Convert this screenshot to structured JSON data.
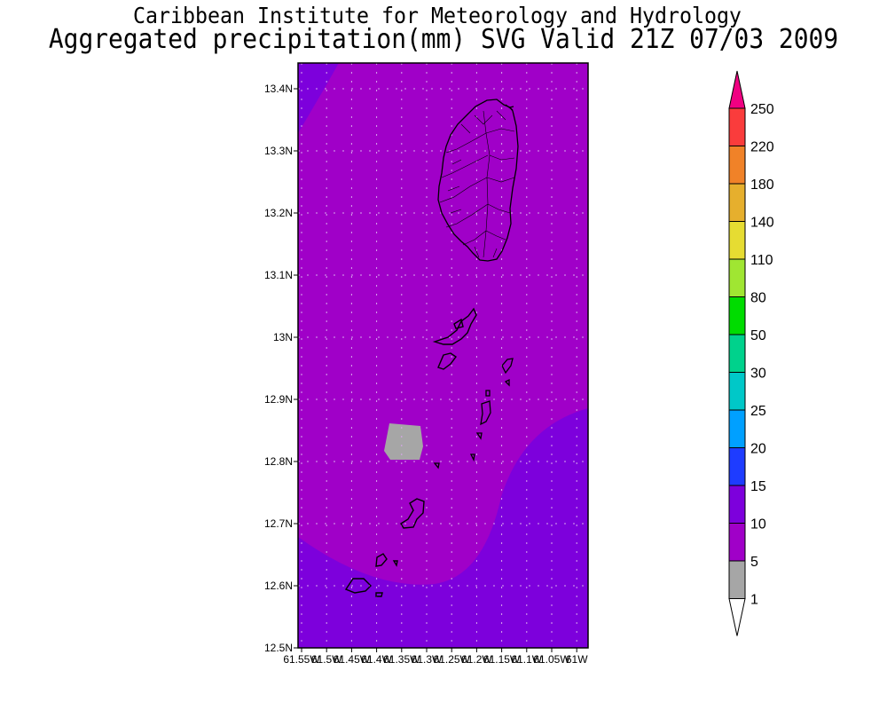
{
  "header": {
    "institute": "Caribbean Institute for Meteorology and Hydrology",
    "product": "Aggregated precipitation(mm) SVG Valid 21Z 07/03 2009"
  },
  "map": {
    "region": "Saint Vincent and the Grenadines",
    "lat_range": [
      12.5,
      13.45
    ],
    "lon_range": [
      -61.55,
      -61.0
    ],
    "lat_ticks": [
      "13.4N",
      "13.3N",
      "13.2N",
      "13.1N",
      "13N",
      "12.9N",
      "12.8N",
      "12.7N",
      "12.6N",
      "12.5N"
    ],
    "lon_ticks": [
      "61.55W",
      "61.5W",
      "61.45W",
      "61.4W",
      "61.35W",
      "61.3W",
      "61.25W",
      "61.2W",
      "61.15W",
      "61.1W",
      "61.05W",
      "61W"
    ],
    "grid": "dotted",
    "fill_colors": {
      "band_5_10": "#a000c8",
      "band_10_15": "#7d00dc",
      "band_1_5": "#a6a6a6"
    }
  },
  "colorbar": {
    "levels": [
      "1",
      "5",
      "10",
      "15",
      "20",
      "25",
      "30",
      "50",
      "80",
      "110",
      "140",
      "180",
      "220",
      "250"
    ],
    "colors": [
      "#ffffff",
      "#a6a6a6",
      "#a000c8",
      "#7d00dc",
      "#1e3cff",
      "#00a0ff",
      "#00c8c8",
      "#00d28c",
      "#00dc00",
      "#a0e632",
      "#e6dc32",
      "#e6af2d",
      "#f08228",
      "#fa3c3c",
      "#f00082"
    ]
  }
}
